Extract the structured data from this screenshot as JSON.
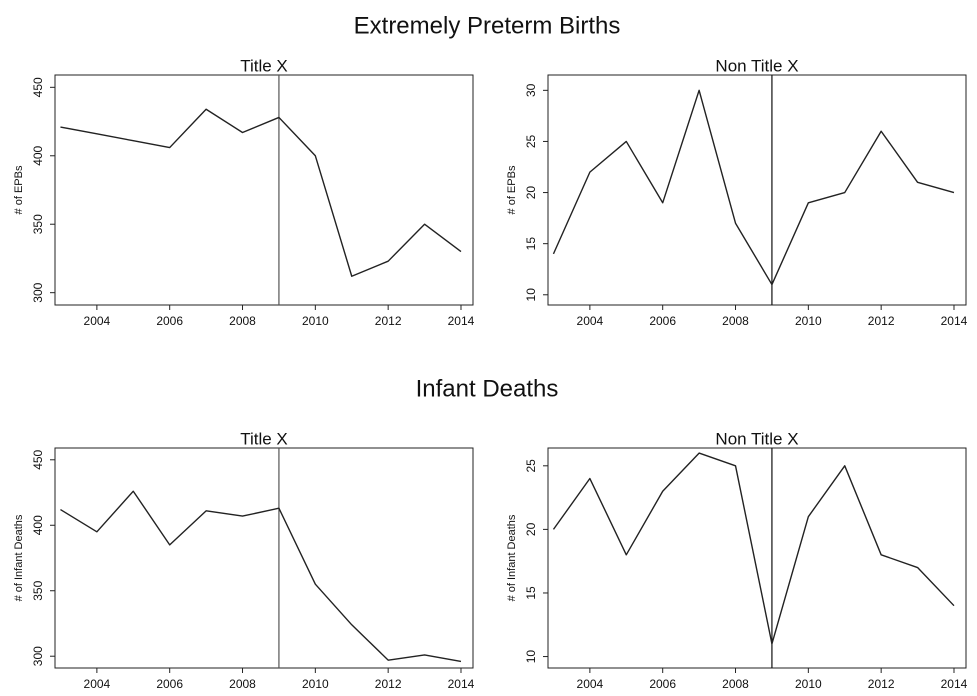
{
  "headings": [
    "Extremely Preterm Births",
    "Infant Deaths"
  ],
  "chart_data": [
    {
      "type": "line",
      "title": "Title X",
      "y_label": "# of EPBs",
      "x": [
        2003,
        2004,
        2005,
        2006,
        2007,
        2008,
        2009,
        2010,
        2011,
        2012,
        2013,
        2014
      ],
      "values": [
        421,
        416,
        411,
        406,
        434,
        417,
        428,
        400,
        312,
        323,
        350,
        330
      ],
      "color": "#222222",
      "xlim": [
        2002.85,
        2014.33
      ],
      "xticks": [
        2004,
        2006,
        2008,
        2010,
        2012,
        2014
      ],
      "ylim": [
        291,
        459
      ],
      "yticks": [
        300,
        350,
        400,
        450
      ],
      "vline": 2009,
      "vline_color": "#555555"
    },
    {
      "type": "line",
      "title": "Non Title X",
      "y_label": "# of EPBs",
      "x": [
        2003,
        2004,
        2005,
        2006,
        2007,
        2008,
        2009,
        2010,
        2011,
        2012,
        2013,
        2014
      ],
      "values": [
        14,
        22,
        25,
        19,
        30,
        17,
        11,
        19,
        20,
        26,
        21,
        20
      ],
      "color": "#222222",
      "xlim": [
        2002.85,
        2014.33
      ],
      "xticks": [
        2004,
        2006,
        2008,
        2010,
        2012,
        2014
      ],
      "ylim": [
        9,
        31.5
      ],
      "yticks": [
        10,
        15,
        20,
        25,
        30
      ],
      "vline": 2009,
      "vline_color": "#111111"
    },
    {
      "type": "line",
      "title": "Title X",
      "y_label": "# of Infant Deaths",
      "x": [
        2003,
        2004,
        2005,
        2006,
        2007,
        2008,
        2009,
        2010,
        2011,
        2012,
        2013,
        2014
      ],
      "values": [
        412,
        395,
        426,
        385,
        411,
        407,
        413,
        355,
        324,
        297,
        301,
        296
      ],
      "color": "#222222",
      "xlim": [
        2002.85,
        2014.33
      ],
      "xticks": [
        2004,
        2006,
        2008,
        2010,
        2012,
        2014
      ],
      "ylim": [
        291,
        459
      ],
      "yticks": [
        300,
        350,
        400,
        450
      ],
      "vline": 2009,
      "vline_color": "#555555"
    },
    {
      "type": "line",
      "title": "Non Title X",
      "y_label": "# of Infant Deaths",
      "x": [
        2003,
        2004,
        2005,
        2006,
        2007,
        2008,
        2009,
        2010,
        2011,
        2012,
        2013,
        2014
      ],
      "values": [
        20,
        24,
        18,
        23,
        26,
        25,
        11,
        21,
        25,
        18,
        17,
        14
      ],
      "color": "#222222",
      "xlim": [
        2002.85,
        2014.33
      ],
      "xticks": [
        2004,
        2006,
        2008,
        2010,
        2012,
        2014
      ],
      "ylim": [
        9.1,
        26.4
      ],
      "yticks": [
        10,
        15,
        20,
        25
      ],
      "vline": 2009,
      "vline_color": "#111111"
    }
  ]
}
